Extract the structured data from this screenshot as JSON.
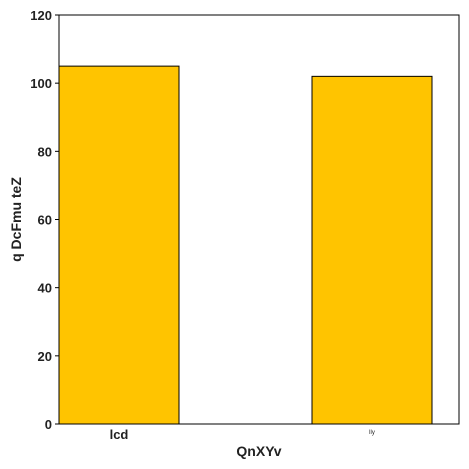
{
  "chart_data": {
    "type": "bar",
    "categories": [
      "lcd",
      "lly"
    ],
    "values": [
      105,
      102
    ],
    "xlabel": "QnXYv",
    "ylabel": "q DcFmu teZ",
    "ylim": [
      0,
      120
    ],
    "yticks": [
      0,
      20,
      40,
      60,
      80,
      100,
      120
    ],
    "bar_color": "#ffc400",
    "bar_edge_color": "#000000",
    "grid": false,
    "legend": "none"
  }
}
